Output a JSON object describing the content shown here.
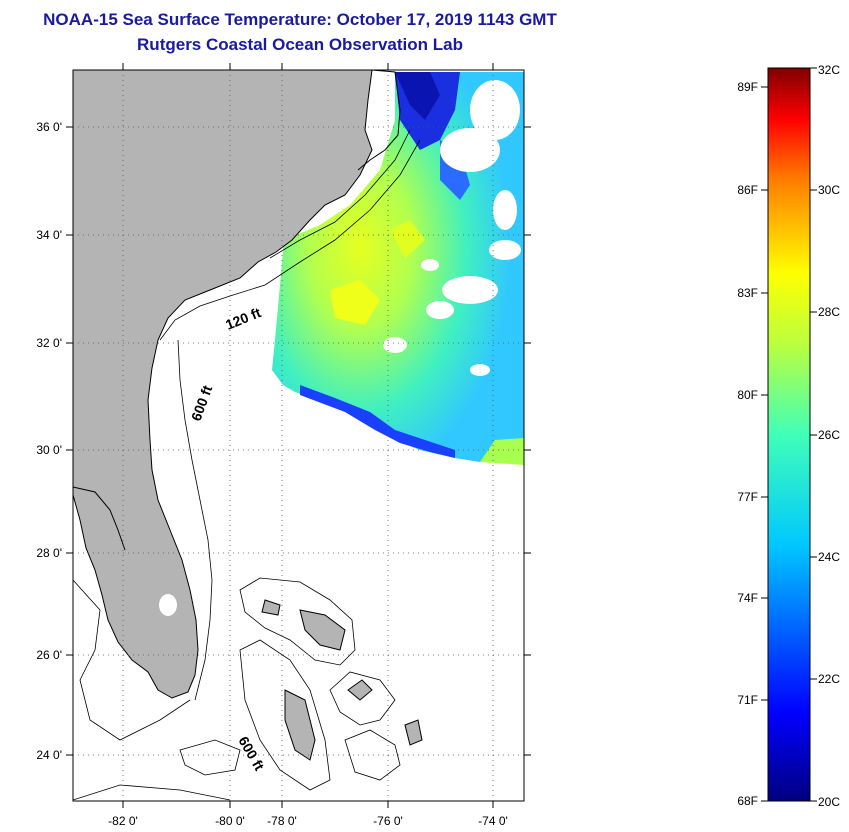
{
  "title": "NOAA-15 Sea Surface Temperature:  October 17, 2019 1143 GMT",
  "subtitle": "Rutgers Coastal Ocean Observation Lab",
  "map": {
    "lon_ticks": [
      "-82 0'",
      "-80 0'",
      "-78 0'",
      "-76 0'",
      "-74 0'"
    ],
    "lat_ticks": [
      "36 0'",
      "34 0'",
      "32 0'",
      "30 0'",
      "28 0'",
      "26 0'",
      "24 0'"
    ],
    "contour_labels": [
      "120 ft",
      "600 ft",
      "600 ft"
    ],
    "land_color": "#b4b4b4",
    "ocean_no_data_color": "#ffffff"
  },
  "colorbar": {
    "fahrenheit_labels": [
      "89F",
      "86F",
      "83F",
      "80F",
      "77F",
      "74F",
      "71F",
      "68F"
    ],
    "celsius_labels": [
      "32C",
      "30C",
      "28C",
      "26C",
      "24C",
      "22C",
      "20C"
    ],
    "min_c": 20,
    "max_c": 32,
    "colormap": "jet"
  }
}
